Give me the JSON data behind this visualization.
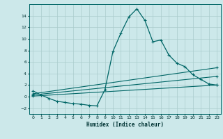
{
  "title": "",
  "xlabel": "Humidex (Indice chaleur)",
  "ylabel": "",
  "bg_color": "#cce8ea",
  "grid_color": "#aacccc",
  "line_color": "#006666",
  "xlim": [
    -0.5,
    23.5
  ],
  "ylim": [
    -3,
    16
  ],
  "xticks": [
    0,
    1,
    2,
    3,
    4,
    5,
    6,
    7,
    8,
    9,
    10,
    11,
    12,
    13,
    14,
    15,
    16,
    17,
    18,
    19,
    20,
    21,
    22,
    23
  ],
  "yticks": [
    -2,
    0,
    2,
    4,
    6,
    8,
    10,
    12,
    14
  ],
  "series1_x": [
    0,
    1,
    2,
    3,
    4,
    5,
    6,
    7,
    8,
    9,
    10,
    11,
    12,
    13,
    14,
    15,
    16,
    17,
    18,
    19,
    20,
    21,
    22,
    23
  ],
  "series1_y": [
    1.0,
    0.3,
    -0.3,
    -0.8,
    -1.0,
    -1.2,
    -1.3,
    -1.5,
    -1.6,
    1.2,
    7.8,
    11.0,
    13.8,
    15.2,
    13.2,
    9.5,
    9.8,
    7.2,
    5.8,
    5.2,
    3.8,
    3.0,
    2.2,
    2.0
  ],
  "series2_x": [
    0,
    23
  ],
  "series2_y": [
    0.5,
    5.0
  ],
  "series3_x": [
    0,
    23
  ],
  "series3_y": [
    0.3,
    3.5
  ],
  "series4_x": [
    0,
    23
  ],
  "series4_y": [
    0.1,
    2.0
  ]
}
